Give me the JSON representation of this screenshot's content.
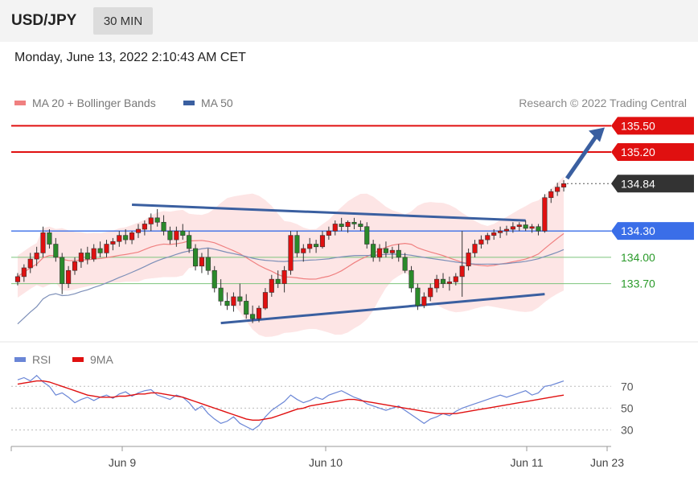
{
  "header": {
    "symbol": "USD/JPY",
    "timeframe": "30 MIN"
  },
  "datetime": "Monday, June 13, 2022 2:10:43 AM CET",
  "legend": {
    "ma20_label": "MA 20 + Bollinger Bands",
    "ma20_color": "#f08080",
    "ma50_label": "MA 50",
    "ma50_color": "#3a5fa0"
  },
  "copyright": "Research © 2022 Trading Central",
  "rsi_legend": {
    "rsi_label": "RSI",
    "rsi_color": "#6a86d6",
    "ma9_label": "9MA",
    "ma9_color": "#e01010"
  },
  "colors": {
    "resistance": "#e01010",
    "support_green": "#2a9a2a",
    "pivot": "#3a6ee8",
    "trendline": "#3a5fa0",
    "bull": "#e01010",
    "bear": "#2a8a2a"
  },
  "chart_data": [
    {
      "type": "candlestick",
      "ylim": [
        133.1,
        135.65
      ],
      "x_ticks": [
        "Jun 9",
        "Jun 10",
        "Jun 11",
        "Jun 23"
      ],
      "levels": [
        {
          "value": 135.5,
          "label": "135.50",
          "style": "resistance"
        },
        {
          "value": 135.2,
          "label": "135.20",
          "style": "resistance"
        },
        {
          "value": 134.84,
          "label": "134.84",
          "style": "last"
        },
        {
          "value": 134.3,
          "label": "134.30",
          "style": "pivot"
        },
        {
          "value": 134.0,
          "label": "134.00",
          "style": "support"
        },
        {
          "value": 133.7,
          "label": "133.70",
          "style": "support"
        }
      ],
      "candles": [
        [
          133.72,
          133.82,
          133.68,
          133.78
        ],
        [
          133.78,
          133.92,
          133.72,
          133.88
        ],
        [
          133.88,
          134.05,
          133.82,
          133.98
        ],
        [
          133.98,
          134.12,
          133.9,
          134.05
        ],
        [
          134.05,
          134.35,
          134.0,
          134.28
        ],
        [
          134.28,
          134.32,
          134.1,
          134.15
        ],
        [
          134.15,
          134.22,
          133.95,
          134.0
        ],
        [
          134.0,
          134.05,
          133.58,
          133.7
        ],
        [
          133.7,
          133.9,
          133.65,
          133.85
        ],
        [
          133.85,
          134.0,
          133.8,
          133.95
        ],
        [
          133.95,
          134.1,
          133.88,
          134.05
        ],
        [
          134.05,
          134.12,
          133.92,
          133.98
        ],
        [
          133.98,
          134.15,
          133.95,
          134.1
        ],
        [
          134.1,
          134.18,
          134.0,
          134.05
        ],
        [
          134.05,
          134.2,
          134.0,
          134.15
        ],
        [
          134.15,
          134.22,
          134.08,
          134.18
        ],
        [
          134.18,
          134.3,
          134.12,
          134.25
        ],
        [
          134.25,
          134.32,
          134.15,
          134.2
        ],
        [
          134.2,
          134.3,
          134.15,
          134.28
        ],
        [
          134.28,
          134.38,
          134.22,
          134.32
        ],
        [
          134.32,
          134.42,
          134.25,
          134.38
        ],
        [
          134.38,
          134.5,
          134.3,
          134.45
        ],
        [
          134.45,
          134.55,
          134.35,
          134.4
        ],
        [
          134.4,
          134.48,
          134.25,
          134.3
        ],
        [
          134.3,
          134.35,
          134.15,
          134.2
        ],
        [
          134.2,
          134.35,
          134.12,
          134.3
        ],
        [
          134.3,
          134.38,
          134.2,
          134.25
        ],
        [
          134.25,
          134.3,
          134.05,
          134.1
        ],
        [
          134.1,
          134.15,
          133.85,
          133.9
        ],
        [
          133.9,
          134.05,
          133.82,
          134.0
        ],
        [
          134.0,
          134.1,
          133.8,
          133.85
        ],
        [
          133.85,
          133.9,
          133.6,
          133.65
        ],
        [
          133.65,
          133.75,
          133.45,
          133.5
        ],
        [
          133.5,
          133.6,
          133.4,
          133.45
        ],
        [
          133.45,
          133.6,
          133.38,
          133.55
        ],
        [
          133.55,
          133.7,
          133.45,
          133.5
        ],
        [
          133.5,
          133.58,
          133.3,
          133.35
        ],
        [
          133.35,
          133.45,
          133.25,
          133.3
        ],
        [
          133.3,
          133.45,
          133.26,
          133.42
        ],
        [
          133.42,
          133.65,
          133.4,
          133.6
        ],
        [
          133.6,
          133.8,
          133.55,
          133.75
        ],
        [
          133.75,
          133.85,
          133.65,
          133.7
        ],
        [
          133.7,
          133.9,
          133.6,
          133.85
        ],
        [
          133.85,
          134.3,
          133.8,
          134.25
        ],
        [
          134.25,
          134.3,
          134.0,
          134.05
        ],
        [
          134.05,
          134.15,
          133.95,
          134.1
        ],
        [
          134.1,
          134.22,
          134.05,
          134.15
        ],
        [
          134.15,
          134.2,
          134.05,
          134.12
        ],
        [
          134.12,
          134.3,
          134.1,
          134.25
        ],
        [
          134.25,
          134.35,
          134.2,
          134.3
        ],
        [
          134.3,
          134.42,
          134.25,
          134.38
        ],
        [
          134.38,
          134.45,
          134.3,
          134.35
        ],
        [
          134.35,
          134.42,
          134.28,
          134.4
        ],
        [
          134.4,
          134.45,
          134.32,
          134.38
        ],
        [
          134.38,
          134.42,
          134.3,
          134.35
        ],
        [
          134.35,
          134.4,
          134.1,
          134.15
        ],
        [
          134.15,
          134.2,
          133.95,
          134.0
        ],
        [
          134.0,
          134.15,
          133.95,
          134.1
        ],
        [
          134.1,
          134.18,
          134.0,
          134.05
        ],
        [
          134.05,
          134.12,
          133.98,
          134.08
        ],
        [
          134.08,
          134.15,
          133.95,
          134.0
        ],
        [
          134.0,
          134.05,
          133.82,
          133.85
        ],
        [
          133.85,
          133.9,
          133.6,
          133.65
        ],
        [
          133.65,
          133.7,
          133.4,
          133.45
        ],
        [
          133.45,
          133.6,
          133.42,
          133.55
        ],
        [
          133.55,
          133.7,
          133.5,
          133.65
        ],
        [
          133.65,
          133.8,
          133.6,
          133.75
        ],
        [
          133.75,
          133.82,
          133.65,
          133.7
        ],
        [
          133.7,
          133.78,
          133.62,
          133.72
        ],
        [
          133.72,
          133.82,
          133.68,
          133.78
        ],
        [
          133.78,
          134.3,
          133.55,
          133.9
        ],
        [
          133.9,
          134.1,
          133.85,
          134.05
        ],
        [
          134.05,
          134.2,
          134.0,
          134.15
        ],
        [
          134.15,
          134.25,
          134.1,
          134.2
        ],
        [
          134.2,
          134.28,
          134.15,
          134.25
        ],
        [
          134.25,
          134.32,
          134.2,
          134.28
        ],
        [
          134.28,
          134.35,
          134.22,
          134.3
        ],
        [
          134.3,
          134.36,
          134.25,
          134.32
        ],
        [
          134.32,
          134.4,
          134.28,
          134.35
        ],
        [
          134.35,
          134.4,
          134.3,
          134.37
        ],
        [
          134.37,
          134.42,
          134.3,
          134.33
        ],
        [
          134.33,
          134.38,
          134.28,
          134.35
        ],
        [
          134.35,
          134.38,
          134.25,
          134.3
        ],
        [
          134.3,
          134.72,
          134.28,
          134.68
        ],
        [
          134.68,
          134.78,
          134.62,
          134.75
        ],
        [
          134.75,
          134.85,
          134.7,
          134.8
        ],
        [
          134.8,
          134.88,
          134.75,
          134.84
        ]
      ]
    },
    {
      "type": "line",
      "ylim": [
        20,
        85
      ],
      "y_ticks": [
        70,
        50,
        30
      ],
      "series": [
        {
          "name": "RSI",
          "values": [
            76,
            78,
            75,
            80,
            74,
            70,
            62,
            64,
            60,
            55,
            58,
            60,
            57,
            60,
            62,
            59,
            63,
            65,
            61,
            64,
            66,
            67,
            62,
            60,
            58,
            62,
            60,
            55,
            48,
            52,
            45,
            40,
            36,
            38,
            42,
            36,
            33,
            30,
            34,
            42,
            48,
            52,
            56,
            62,
            58,
            55,
            57,
            60,
            58,
            62,
            64,
            66,
            63,
            60,
            58,
            54,
            52,
            50,
            48,
            50,
            52,
            48,
            44,
            40,
            36,
            40,
            42,
            45,
            43,
            47,
            50,
            52,
            54,
            56,
            58,
            60,
            62,
            60,
            62,
            64,
            66,
            62,
            64,
            70,
            71,
            73,
            75
          ]
        },
        {
          "name": "9MA",
          "values": [
            72,
            73,
            74,
            75,
            75,
            74,
            72,
            70,
            68,
            66,
            64,
            62,
            61,
            60,
            60,
            60,
            61,
            61,
            62,
            63,
            63,
            64,
            64,
            63,
            62,
            61,
            60,
            58,
            56,
            54,
            52,
            50,
            48,
            46,
            44,
            42,
            40,
            39,
            39,
            40,
            41,
            43,
            45,
            47,
            49,
            50,
            52,
            53,
            54,
            55,
            56,
            57,
            58,
            58,
            57,
            56,
            55,
            54,
            53,
            52,
            51,
            50,
            49,
            48,
            47,
            46,
            45,
            45,
            45,
            45,
            46,
            47,
            48,
            49,
            50,
            51,
            52,
            53,
            54,
            55,
            56,
            57,
            58,
            59,
            60,
            61,
            62
          ]
        }
      ]
    }
  ]
}
